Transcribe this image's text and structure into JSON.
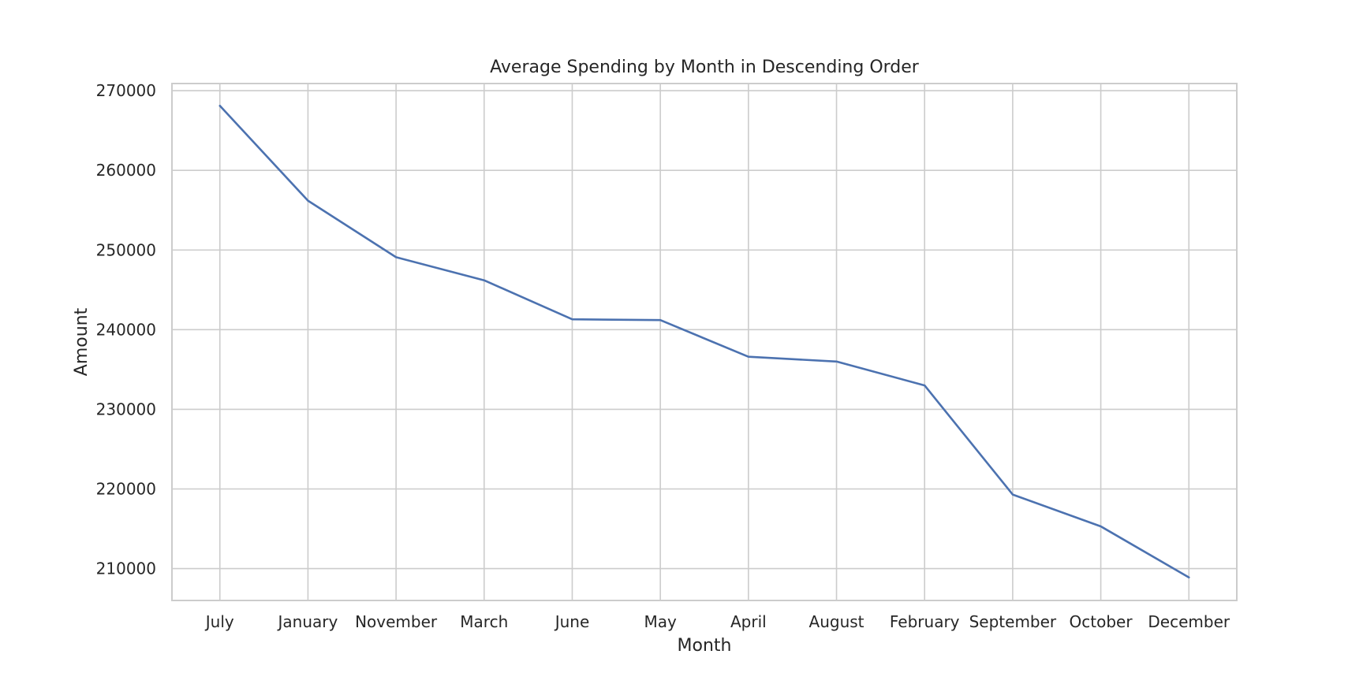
{
  "chart_data": {
    "type": "line",
    "title": "Average Spending by Month in Descending Order",
    "xlabel": "Month",
    "ylabel": "Amount",
    "categories": [
      "July",
      "January",
      "November",
      "March",
      "June",
      "May",
      "April",
      "August",
      "February",
      "September",
      "October",
      "December"
    ],
    "series": [
      {
        "values": [
          268100,
          256200,
          249100,
          246200,
          241300,
          241200,
          236600,
          236000,
          233000,
          219300,
          215300,
          208900
        ]
      }
    ],
    "ylim": [
      206000,
      270900
    ],
    "yticks": [
      210000,
      220000,
      230000,
      240000,
      250000,
      260000,
      270000
    ],
    "ytick_labels": [
      "210000",
      "220000",
      "230000",
      "240000",
      "250000",
      "260000",
      "270000"
    ],
    "grid": true,
    "legend": "none",
    "colors": {
      "line": "#4c72b0",
      "grid": "#cccccc",
      "frame": "#cccccc",
      "text": "#262626"
    }
  }
}
